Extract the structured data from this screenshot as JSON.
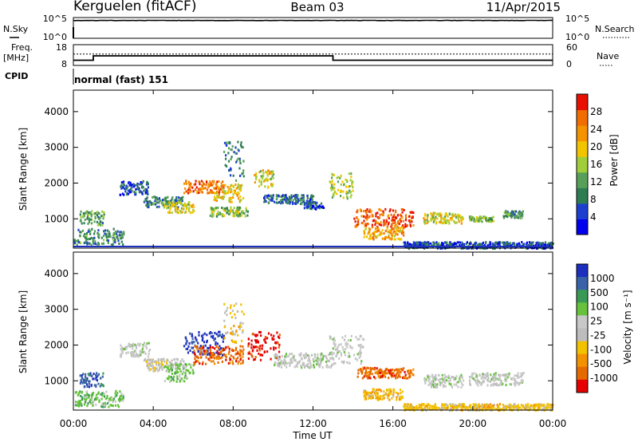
{
  "header": {
    "station": "Kerguelen (fitACF)",
    "beam": "Beam 03",
    "date": "11/Apr/2015"
  },
  "labels": {
    "nsky": "N.Sky",
    "nsearch": "N.Search",
    "freq_line1": "Freq.",
    "freq_line2": "[MHz]",
    "nave": "Nave",
    "cpid": "CPID",
    "cpid_value": "normal (fast) 151"
  },
  "noise_panel": {
    "left_ticks": [
      "10^5",
      "10^0"
    ],
    "right_ticks": [
      "10^5",
      "10^0"
    ],
    "nsky_level_log": 4.3,
    "nsearch_level_log": 4.2
  },
  "freq_panel": {
    "left_ticks": [
      "18",
      "8"
    ],
    "right_ticks": [
      "60",
      "0"
    ],
    "frequency_mhz": [
      {
        "t": 0,
        "v": 10.5
      },
      {
        "t": 1.0,
        "v": 10.5
      },
      {
        "t": 1.0,
        "v": 12.6
      },
      {
        "t": 13.0,
        "v": 12.6
      },
      {
        "t": 13.0,
        "v": 10.5
      },
      {
        "t": 24,
        "v": 10.5
      }
    ],
    "nave_level": 33
  },
  "colors": {
    "power_scale": [
      "#0000ee",
      "#1d3fd0",
      "#2e7d52",
      "#58a05a",
      "#9fce3a",
      "#f2c400",
      "#f49200",
      "#f26d00",
      "#e81000"
    ],
    "velocity_scale": [
      "#1c2fbf",
      "#3a62a8",
      "#3a9a55",
      "#66c23c",
      "#c8c8c8",
      "#bdbdbd",
      "#f2c100",
      "#f39200",
      "#e56a00",
      "#e60000"
    ]
  },
  "chart_data": [
    {
      "type": "heatmap",
      "panel": "power",
      "title": "",
      "xlabel": "",
      "ylabel": "Slant Range [km]",
      "xlim": [
        0,
        24
      ],
      "ylim": [
        180,
        4600
      ],
      "x_tick_labels": [
        "00:00",
        "04:00",
        "08:00",
        "12:00",
        "16:00",
        "20:00",
        "00:00"
      ],
      "x_tick_values": [
        0,
        4,
        8,
        12,
        16,
        20,
        24
      ],
      "y_tick_values": [
        1000,
        2000,
        3000,
        4000
      ],
      "y_tick_labels": [
        "1000",
        "2000",
        "3000",
        "4000"
      ],
      "colorbar": {
        "label": "Power [dB]",
        "range": [
          0,
          32
        ],
        "tick_values": [
          4,
          8,
          12,
          16,
          20,
          24,
          28
        ],
        "tick_labels": [
          "4",
          "8",
          "12",
          "16",
          "20",
          "24",
          "28"
        ]
      },
      "echo_regions": [
        {
          "t0": 0.0,
          "t1": 2.5,
          "r0": 300,
          "r1": 750,
          "value": 10
        },
        {
          "t0": 0.3,
          "t1": 1.5,
          "r0": 850,
          "r1": 1250,
          "value": 12
        },
        {
          "t0": 2.3,
          "t1": 3.8,
          "r0": 1700,
          "r1": 2100,
          "value": 6
        },
        {
          "t0": 3.5,
          "t1": 5.5,
          "r0": 1350,
          "r1": 1650,
          "value": 10
        },
        {
          "t0": 4.5,
          "t1": 6.0,
          "r0": 1200,
          "r1": 1500,
          "value": 18
        },
        {
          "t0": 5.5,
          "t1": 7.5,
          "r0": 1750,
          "r1": 2100,
          "value": 26
        },
        {
          "t0": 7.0,
          "t1": 8.5,
          "r0": 1500,
          "r1": 2000,
          "value": 20
        },
        {
          "t0": 6.8,
          "t1": 8.7,
          "r0": 1100,
          "r1": 1350,
          "value": 14
        },
        {
          "t0": 7.5,
          "t1": 8.5,
          "r0": 2100,
          "r1": 3200,
          "value": 9
        },
        {
          "t0": 9.0,
          "t1": 10.0,
          "r0": 1900,
          "r1": 2400,
          "value": 18
        },
        {
          "t0": 9.5,
          "t1": 12.0,
          "r0": 1450,
          "r1": 1700,
          "value": 8
        },
        {
          "t0": 11.5,
          "t1": 12.5,
          "r0": 1300,
          "r1": 1500,
          "value": 6
        },
        {
          "t0": 12.8,
          "t1": 14.0,
          "r0": 1600,
          "r1": 2300,
          "value": 16
        },
        {
          "t0": 14.0,
          "t1": 17.0,
          "r0": 800,
          "r1": 1300,
          "value": 28
        },
        {
          "t0": 14.5,
          "t1": 16.5,
          "r0": 450,
          "r1": 800,
          "value": 22
        },
        {
          "t0": 17.5,
          "t1": 19.5,
          "r0": 900,
          "r1": 1200,
          "value": 18
        },
        {
          "t0": 19.8,
          "t1": 21.0,
          "r0": 950,
          "r1": 1100,
          "value": 14
        },
        {
          "t0": 21.5,
          "t1": 22.5,
          "r0": 1050,
          "r1": 1250,
          "value": 10
        },
        {
          "t0": 16.5,
          "t1": 24.0,
          "r0": 200,
          "r1": 380,
          "value": 6
        }
      ]
    },
    {
      "type": "heatmap",
      "panel": "velocity",
      "title": "",
      "xlabel": "Time UT",
      "ylabel": "Slant Range [km]",
      "xlim": [
        0,
        24
      ],
      "ylim": [
        180,
        4600
      ],
      "x_tick_labels": [
        "00:00",
        "04:00",
        "08:00",
        "12:00",
        "16:00",
        "20:00",
        "00:00"
      ],
      "x_tick_values": [
        0,
        4,
        8,
        12,
        16,
        20,
        24
      ],
      "y_tick_values": [
        1000,
        2000,
        3000,
        4000
      ],
      "y_tick_labels": [
        "1000",
        "2000",
        "3000",
        "4000"
      ],
      "colorbar": {
        "label": "Velocity [m s⁻¹]",
        "tick_labels": [
          "1000",
          "500",
          "100",
          "25",
          "-25",
          "-100",
          "-500",
          "-1000"
        ]
      },
      "echo_regions": [
        {
          "t0": 0.0,
          "t1": 2.5,
          "r0": 300,
          "r1": 750,
          "value": "100"
        },
        {
          "t0": 0.3,
          "t1": 1.5,
          "r0": 850,
          "r1": 1250,
          "value": "500"
        },
        {
          "t0": 2.3,
          "t1": 3.8,
          "r0": 1700,
          "r1": 2100,
          "value": "25"
        },
        {
          "t0": 3.5,
          "t1": 5.5,
          "r0": 1300,
          "r1": 1650,
          "value": "-25"
        },
        {
          "t0": 4.5,
          "t1": 6.0,
          "r0": 1000,
          "r1": 1500,
          "value": "100"
        },
        {
          "t0": 5.5,
          "t1": 7.5,
          "r0": 1750,
          "r1": 2400,
          "value": "1000"
        },
        {
          "t0": 6.0,
          "t1": 8.5,
          "r0": 1500,
          "r1": 2000,
          "value": "-500"
        },
        {
          "t0": 7.5,
          "t1": 8.5,
          "r0": 2100,
          "r1": 3200,
          "value": "-100"
        },
        {
          "t0": 8.7,
          "t1": 10.3,
          "r0": 1600,
          "r1": 2400,
          "value": "-1000"
        },
        {
          "t0": 10.0,
          "t1": 13.0,
          "r0": 1400,
          "r1": 1800,
          "value": "25"
        },
        {
          "t0": 12.8,
          "t1": 14.5,
          "r0": 1500,
          "r1": 2300,
          "value": "25"
        },
        {
          "t0": 14.2,
          "t1": 17.0,
          "r0": 1100,
          "r1": 1400,
          "value": "-500"
        },
        {
          "t0": 14.5,
          "t1": 16.5,
          "r0": 500,
          "r1": 800,
          "value": "-100"
        },
        {
          "t0": 17.5,
          "t1": 19.5,
          "r0": 850,
          "r1": 1200,
          "value": "25"
        },
        {
          "t0": 19.8,
          "t1": 22.5,
          "r0": 900,
          "r1": 1250,
          "value": "25"
        },
        {
          "t0": 16.5,
          "t1": 24.0,
          "r0": 200,
          "r1": 380,
          "value": "-100"
        }
      ]
    }
  ]
}
